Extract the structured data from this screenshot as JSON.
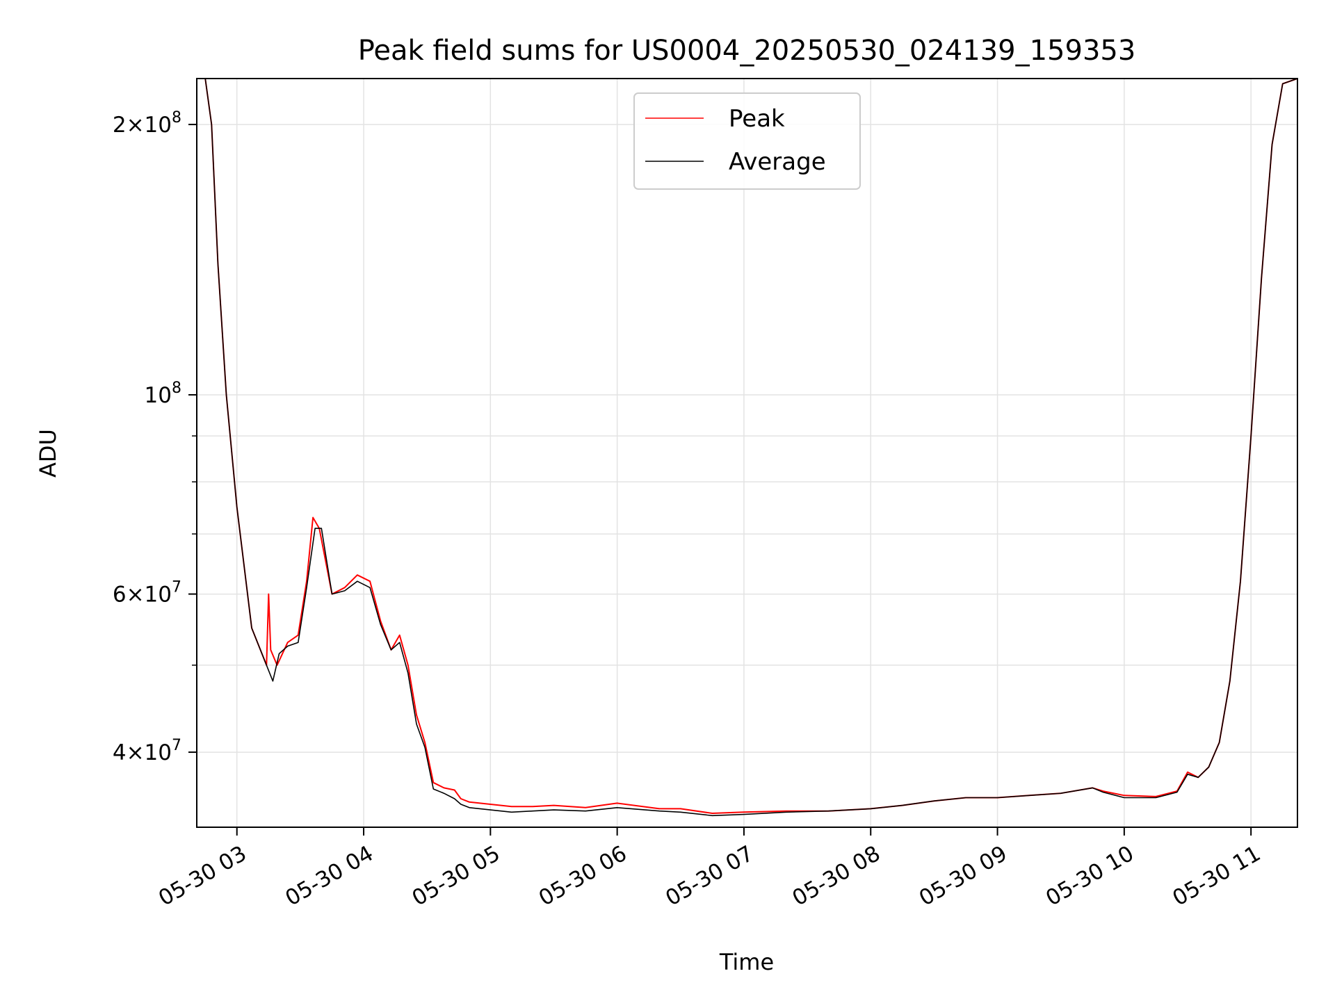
{
  "chart_data": {
    "type": "line",
    "title": "Peak field sums for US0004_20250530_024139_159353",
    "xlabel": "Time",
    "ylabel": "ADU",
    "y_scale": "log",
    "ylim": [
      33000000,
      225000000
    ],
    "xlim": [
      "2025-05-30 02:41",
      "2025-05-30 11:22"
    ],
    "grid": true,
    "legend_position": "upper-center",
    "x_ticks": [
      "05-30 03",
      "05-30 04",
      "05-30 05",
      "05-30 06",
      "05-30 07",
      "05-30 08",
      "05-30 09",
      "05-30 10",
      "05-30 11"
    ],
    "y_ticks_major": [
      {
        "value": 40000000,
        "mantissa": "4",
        "exponent": "7"
      },
      {
        "value": 60000000,
        "mantissa": "6",
        "exponent": "7"
      },
      {
        "value": 100000000,
        "mantissa": "",
        "exponent": "8"
      },
      {
        "value": 200000000,
        "mantissa": "2",
        "exponent": "8"
      }
    ],
    "y_ticks_minor": [
      50000000,
      70000000,
      80000000,
      90000000
    ],
    "series": [
      {
        "name": "Peak",
        "color": "#ff0000",
        "x": [
          "2025-05-30 02:41",
          "2025-05-30 02:45",
          "2025-05-30 02:48",
          "2025-05-30 02:51",
          "2025-05-30 02:55",
          "2025-05-30 03:00",
          "2025-05-30 03:07",
          "2025-05-30 03:14",
          "2025-05-30 03:15",
          "2025-05-30 03:16",
          "2025-05-30 03:19",
          "2025-05-30 03:24",
          "2025-05-30 03:29",
          "2025-05-30 03:33",
          "2025-05-30 03:36",
          "2025-05-30 03:39",
          "2025-05-30 03:45",
          "2025-05-30 03:51",
          "2025-05-30 03:57",
          "2025-05-30 04:03",
          "2025-05-30 04:08",
          "2025-05-30 04:13",
          "2025-05-30 04:17",
          "2025-05-30 04:21",
          "2025-05-30 04:25",
          "2025-05-30 04:29",
          "2025-05-30 04:33",
          "2025-05-30 04:38",
          "2025-05-30 04:43",
          "2025-05-30 04:46",
          "2025-05-30 04:50",
          "2025-05-30 04:55",
          "2025-05-30 05:00",
          "2025-05-30 05:10",
          "2025-05-30 05:20",
          "2025-05-30 05:30",
          "2025-05-30 05:45",
          "2025-05-30 06:00",
          "2025-05-30 06:20",
          "2025-05-30 06:30",
          "2025-05-30 06:45",
          "2025-05-30 07:00",
          "2025-05-30 07:20",
          "2025-05-30 07:40",
          "2025-05-30 08:00",
          "2025-05-30 08:15",
          "2025-05-30 08:30",
          "2025-05-30 08:45",
          "2025-05-30 09:00",
          "2025-05-30 09:15",
          "2025-05-30 09:30",
          "2025-05-30 09:45",
          "2025-05-30 09:50",
          "2025-05-30 10:00",
          "2025-05-30 10:15",
          "2025-05-30 10:25",
          "2025-05-30 10:30",
          "2025-05-30 10:35",
          "2025-05-30 10:40",
          "2025-05-30 10:45",
          "2025-05-30 10:50",
          "2025-05-30 10:55",
          "2025-05-30 11:00",
          "2025-05-30 11:05",
          "2025-05-30 11:10",
          "2025-05-30 11:15",
          "2025-05-30 11:22"
        ],
        "y": [
          225000000,
          225000000,
          200000000,
          140000000,
          100000000,
          75000000,
          55000000,
          50000000,
          60000000,
          52000000,
          50000000,
          53000000,
          54000000,
          62000000,
          73000000,
          71000000,
          60000000,
          61000000,
          63000000,
          62000000,
          56000000,
          52000000,
          54000000,
          50000000,
          44000000,
          41000000,
          37000000,
          36500000,
          36300000,
          35500000,
          35200000,
          35100000,
          35000000,
          34800000,
          34800000,
          34900000,
          34700000,
          35100000,
          34600000,
          34600000,
          34200000,
          34300000,
          34400000,
          34400000,
          34600000,
          34900000,
          35300000,
          35600000,
          35600000,
          35800000,
          36000000,
          36500000,
          36200000,
          35800000,
          35700000,
          36200000,
          38000000,
          37500000,
          38500000,
          41000000,
          48000000,
          62000000,
          90000000,
          135000000,
          190000000,
          222000000,
          225000000
        ]
      },
      {
        "name": "Average",
        "color": "#000000",
        "x": [
          "2025-05-30 02:41",
          "2025-05-30 02:45",
          "2025-05-30 02:48",
          "2025-05-30 02:51",
          "2025-05-30 02:55",
          "2025-05-30 03:00",
          "2025-05-30 03:07",
          "2025-05-30 03:14",
          "2025-05-30 03:17",
          "2025-05-30 03:20",
          "2025-05-30 03:24",
          "2025-05-30 03:29",
          "2025-05-30 03:33",
          "2025-05-30 03:37",
          "2025-05-30 03:40",
          "2025-05-30 03:45",
          "2025-05-30 03:51",
          "2025-05-30 03:57",
          "2025-05-30 04:03",
          "2025-05-30 04:08",
          "2025-05-30 04:13",
          "2025-05-30 04:17",
          "2025-05-30 04:21",
          "2025-05-30 04:25",
          "2025-05-30 04:29",
          "2025-05-30 04:33",
          "2025-05-30 04:38",
          "2025-05-30 04:43",
          "2025-05-30 04:46",
          "2025-05-30 04:50",
          "2025-05-30 04:55",
          "2025-05-30 05:00",
          "2025-05-30 05:10",
          "2025-05-30 05:20",
          "2025-05-30 05:30",
          "2025-05-30 05:45",
          "2025-05-30 06:00",
          "2025-05-30 06:20",
          "2025-05-30 06:30",
          "2025-05-30 06:45",
          "2025-05-30 07:00",
          "2025-05-30 07:20",
          "2025-05-30 07:40",
          "2025-05-30 08:00",
          "2025-05-30 08:15",
          "2025-05-30 08:30",
          "2025-05-30 08:45",
          "2025-05-30 09:00",
          "2025-05-30 09:15",
          "2025-05-30 09:30",
          "2025-05-30 09:45",
          "2025-05-30 09:50",
          "2025-05-30 10:00",
          "2025-05-30 10:15",
          "2025-05-30 10:25",
          "2025-05-30 10:30",
          "2025-05-30 10:35",
          "2025-05-30 10:40",
          "2025-05-30 10:45",
          "2025-05-30 10:50",
          "2025-05-30 10:55",
          "2025-05-30 11:00",
          "2025-05-30 11:05",
          "2025-05-30 11:10",
          "2025-05-30 11:15",
          "2025-05-30 11:22"
        ],
        "y": [
          225000000,
          225000000,
          200000000,
          140000000,
          100000000,
          75000000,
          55000000,
          50000000,
          48000000,
          51500000,
          52500000,
          53000000,
          61000000,
          71000000,
          71000000,
          60000000,
          60500000,
          62000000,
          61000000,
          55500000,
          52000000,
          53000000,
          49000000,
          43000000,
          40500000,
          36400000,
          36000000,
          35500000,
          35000000,
          34700000,
          34600000,
          34500000,
          34300000,
          34400000,
          34500000,
          34400000,
          34700000,
          34400000,
          34300000,
          34000000,
          34100000,
          34300000,
          34400000,
          34600000,
          34900000,
          35300000,
          35600000,
          35600000,
          35800000,
          36000000,
          36500000,
          36100000,
          35600000,
          35600000,
          36100000,
          37800000,
          37500000,
          38500000,
          41000000,
          48000000,
          62000000,
          90000000,
          135000000,
          190000000,
          222000000,
          225000000
        ]
      }
    ]
  }
}
